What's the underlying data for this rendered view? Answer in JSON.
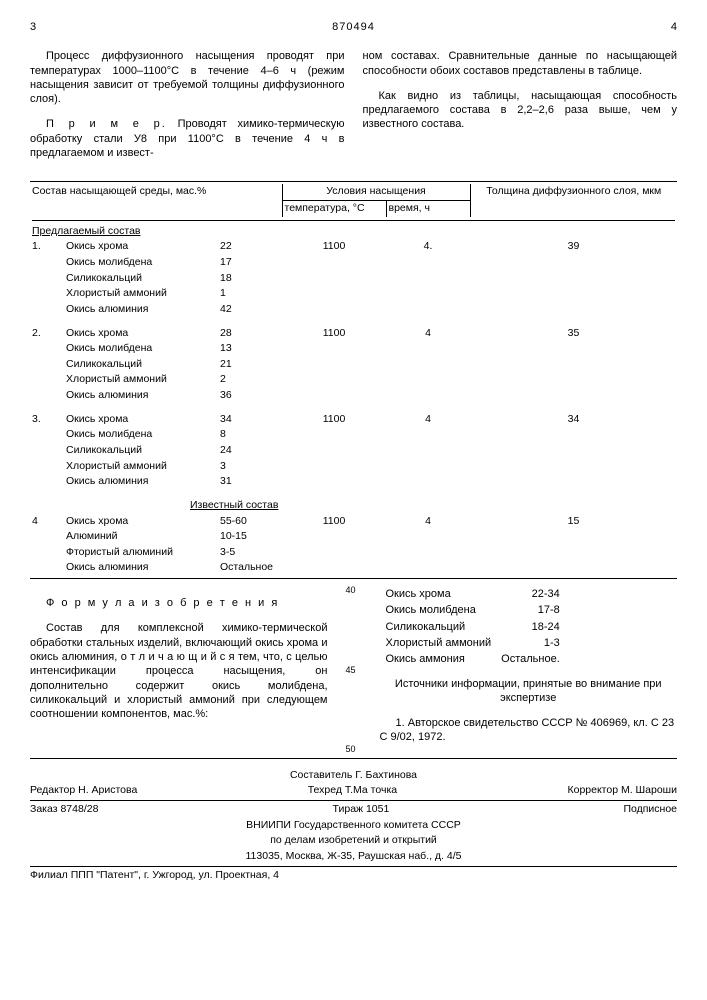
{
  "page_left": "3",
  "doc_number": "870494",
  "page_right": "4",
  "col_left": {
    "p1": "Процесс диффузионного насыщения проводят при температурах 1000–1100°С в течение 4–6 ч (режим насыщения зависит от требуемой толщины диффузионного слоя).",
    "p2_label": "П р и м е р.",
    "p2": "Проводят химико-термическую обработку стали У8 при 1100°С в течение 4 ч в предлагаемом и извест-"
  },
  "col_right": {
    "p1": "ном составах. Сравнительные данные по насыщающей способности обоих составов представлены в таблице.",
    "p2": "Как видно из таблицы, насыщающая способность предлагаемого состава в 2,2–2,6 раза выше, чем у известного состава."
  },
  "table": {
    "h1": "Состав насыщающей среды, мас.%",
    "h2": "Условия насыщения",
    "h2a": "температура, °С",
    "h2b": "время, ч",
    "h3": "Толщина диффузионного слоя, мкм",
    "sec1": "Предлагаемый состав",
    "sec2": "Известный состав",
    "components": [
      "Окись хрома",
      "Окись молибдена",
      "Силикокальций",
      "Хлористый аммоний",
      "Окись алюминия"
    ],
    "components4": [
      "Окись хрома",
      "Алюминий",
      "Фтористый алюминий",
      "Окись алюминия"
    ],
    "rows": [
      {
        "n": "1.",
        "vals": [
          "22",
          "17",
          "18",
          "1",
          "42"
        ],
        "temp": "1100",
        "time": "4.",
        "thick": "39"
      },
      {
        "n": "2.",
        "vals": [
          "28",
          "13",
          "21",
          "2",
          "36"
        ],
        "temp": "1100",
        "time": "4",
        "thick": "35"
      },
      {
        "n": "3.",
        "vals": [
          "34",
          "8",
          "24",
          "3",
          "31"
        ],
        "temp": "1100",
        "time": "4",
        "thick": "34"
      }
    ],
    "row4": {
      "n": "4",
      "vals": [
        "55-60",
        "10-15",
        "3-5",
        "Остальное"
      ],
      "temp": "1100",
      "time": "4",
      "thick": "15"
    }
  },
  "formula": {
    "title": "Ф о р м у л а   и з о б р е т е н и я",
    "left": "Состав для комплексной химико-термической обработки стальных изделий, включающий окись хрома и окись алюминия, о т л и ч а ю щ и й с я тем, что, с целью интенсификации процесса насыщения, он дополнительно содержит окись молибдена, силикокальций и хлористый аммоний при следующем соотношении компонентов, мас.%:",
    "comp": [
      [
        "Окись хрома",
        "22-34"
      ],
      [
        "Окись молибдена",
        "17-8"
      ],
      [
        "Силикокальций",
        "18-24"
      ],
      [
        "Хлористый аммоний",
        "1-3"
      ],
      [
        "Окись аммония",
        "Остальное."
      ]
    ],
    "sources_title": "Источники информации, принятые во внимание при экспертизе",
    "source1": "1. Авторское свидетельство СССР № 406969, кл. С 23 С 9/02, 1972.",
    "ln40": "40",
    "ln45": "45",
    "ln50": "50"
  },
  "footer": {
    "l1": "Составитель Г. Бахтинова",
    "l2a": "Редактор Н. Аристова",
    "l2b": "Техред Т.Ма точка",
    "l2c": "Корректор М. Шароши",
    "l3a": "Заказ 8748/28",
    "l3b": "Тираж 1051",
    "l3c": "Подписное",
    "l4": "ВНИИПИ Государственного комитета СССР",
    "l5": "по делам изобретений и открытий",
    "l6": "113035, Москва, Ж-35, Раушская наб., д. 4/5",
    "l7": "Филиал ППП \"Патент\", г. Ужгород, ул. Проектная, 4"
  }
}
